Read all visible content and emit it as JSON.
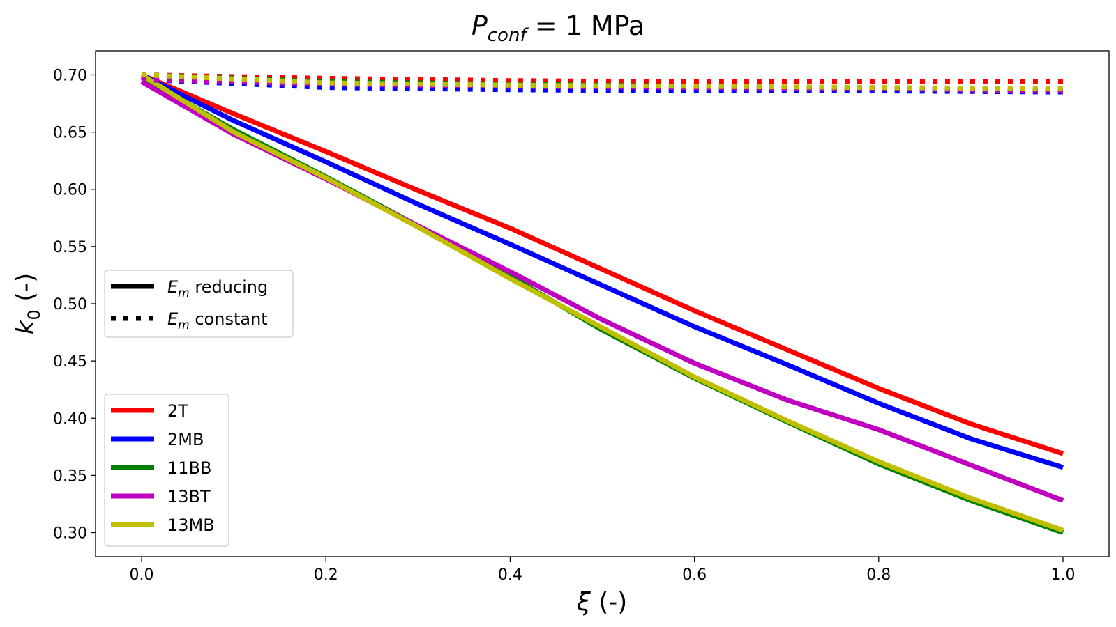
{
  "chart_data": {
    "type": "line",
    "title": {
      "base": "P",
      "sub": "conf",
      "rest": " = 1 MPa"
    },
    "xlabel": {
      "symbol": "ξ",
      "unit": " (-)"
    },
    "ylabel": {
      "base": "k",
      "sub": "0",
      "unit": " (-)"
    },
    "xlim": [
      -0.05,
      1.05
    ],
    "ylim": [
      0.279,
      0.721
    ],
    "xticks": [
      0.0,
      0.2,
      0.4,
      0.6,
      0.8,
      1.0
    ],
    "xtick_labels": [
      "0.0",
      "0.2",
      "0.4",
      "0.6",
      "0.8",
      "1.0"
    ],
    "yticks": [
      0.3,
      0.35,
      0.4,
      0.45,
      0.5,
      0.55,
      0.6,
      0.65,
      0.7
    ],
    "ytick_labels": [
      "0.30",
      "0.35",
      "0.40",
      "0.45",
      "0.50",
      "0.55",
      "0.60",
      "0.65",
      "0.70"
    ],
    "style_legend": [
      {
        "style": "solid",
        "base": "E",
        "sub": "m",
        "rest": " reducing"
      },
      {
        "style": "dotted",
        "base": "E",
        "sub": "m",
        "rest": " constant"
      }
    ],
    "series": [
      {
        "name": "2T",
        "color": "#ff0000",
        "reducing": {
          "x": [
            0.0,
            0.1,
            0.2,
            0.3,
            0.4,
            0.5,
            0.6,
            0.7,
            0.8,
            0.9,
            1.0
          ],
          "y": [
            0.7,
            0.666,
            0.633,
            0.599,
            0.566,
            0.53,
            0.494,
            0.46,
            0.426,
            0.395,
            0.369
          ]
        },
        "constant": {
          "x": [
            0.0,
            0.2,
            0.4,
            0.6,
            0.8,
            1.0
          ],
          "y": [
            0.7,
            0.697,
            0.695,
            0.694,
            0.694,
            0.694
          ]
        }
      },
      {
        "name": "2MB",
        "color": "#0000ff",
        "reducing": {
          "x": [
            0.0,
            0.1,
            0.2,
            0.3,
            0.4,
            0.5,
            0.6,
            0.7,
            0.8,
            0.9,
            1.0
          ],
          "y": [
            0.7,
            0.66,
            0.624,
            0.587,
            0.552,
            0.516,
            0.48,
            0.447,
            0.413,
            0.382,
            0.357
          ]
        },
        "constant": {
          "x": [
            0.0,
            0.2,
            0.4,
            0.6,
            0.8,
            1.0
          ],
          "y": [
            0.696,
            0.689,
            0.687,
            0.686,
            0.686,
            0.685
          ]
        }
      },
      {
        "name": "11BB",
        "color": "#008000",
        "reducing": {
          "x": [
            0.0,
            0.1,
            0.2,
            0.3,
            0.4,
            0.5,
            0.6,
            0.7,
            0.8,
            0.9,
            1.0
          ],
          "y": [
            0.698,
            0.652,
            0.611,
            0.568,
            0.524,
            0.477,
            0.435,
            0.397,
            0.36,
            0.328,
            0.3
          ]
        },
        "constant": {
          "x": [
            0.0,
            0.2,
            0.4,
            0.6,
            0.8,
            1.0
          ],
          "y": [
            0.7,
            0.694,
            0.692,
            0.69,
            0.688,
            0.686
          ]
        }
      },
      {
        "name": "13BT",
        "color": "#bf00bf",
        "reducing": {
          "x": [
            0.0,
            0.1,
            0.2,
            0.3,
            0.4,
            0.5,
            0.6,
            0.7,
            0.8,
            0.9,
            1.0
          ],
          "y": [
            0.694,
            0.648,
            0.609,
            0.568,
            0.528,
            0.486,
            0.448,
            0.416,
            0.39,
            0.359,
            0.328
          ]
        },
        "constant": {
          "x": [
            0.0,
            0.2,
            0.4,
            0.6,
            0.8,
            1.0
          ],
          "y": [
            0.696,
            0.692,
            0.69,
            0.689,
            0.688,
            0.686
          ]
        }
      },
      {
        "name": "13MB",
        "color": "#bfbf00",
        "reducing": {
          "x": [
            0.0,
            0.1,
            0.2,
            0.3,
            0.4,
            0.5,
            0.6,
            0.7,
            0.8,
            0.9,
            1.0
          ],
          "y": [
            0.7,
            0.65,
            0.61,
            0.567,
            0.522,
            0.479,
            0.436,
            0.398,
            0.362,
            0.33,
            0.302
          ]
        },
        "constant": {
          "x": [
            0.0,
            0.2,
            0.4,
            0.6,
            0.8,
            1.0
          ],
          "y": [
            0.7,
            0.693,
            0.691,
            0.69,
            0.689,
            0.688
          ]
        }
      }
    ]
  }
}
